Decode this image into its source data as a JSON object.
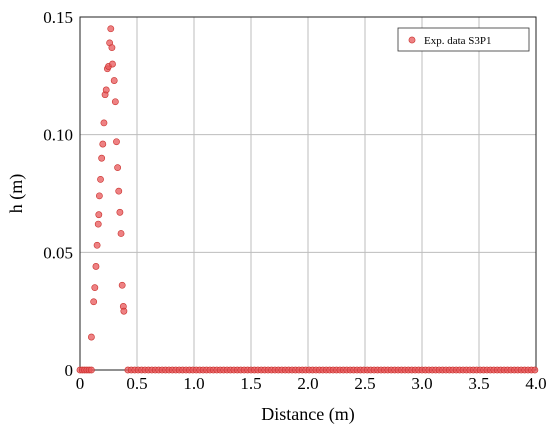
{
  "chart_data": {
    "type": "scatter",
    "title": "",
    "xlabel": "Distance (m)",
    "ylabel": "h (m)",
    "xlim": [
      0,
      4.0
    ],
    "ylim": [
      0,
      0.15
    ],
    "xticks": [
      "0",
      "0.5",
      "1.0",
      "1.5",
      "2.0",
      "2.5",
      "3.0",
      "3.5",
      "4.0"
    ],
    "yticks": [
      "0",
      "0.05",
      "0.10",
      "0.15"
    ],
    "grid": true,
    "legend_position": "top-right",
    "marker_color": "#e8575a",
    "series": [
      {
        "name": "Exp. data S3P1",
        "points": [
          [
            0.1,
            0.014
          ],
          [
            0.12,
            0.029
          ],
          [
            0.13,
            0.035
          ],
          [
            0.14,
            0.044
          ],
          [
            0.15,
            0.053
          ],
          [
            0.16,
            0.062
          ],
          [
            0.165,
            0.066
          ],
          [
            0.17,
            0.074
          ],
          [
            0.18,
            0.081
          ],
          [
            0.19,
            0.09
          ],
          [
            0.2,
            0.096
          ],
          [
            0.21,
            0.105
          ],
          [
            0.22,
            0.117
          ],
          [
            0.23,
            0.119
          ],
          [
            0.24,
            0.128
          ],
          [
            0.25,
            0.129
          ],
          [
            0.26,
            0.139
          ],
          [
            0.27,
            0.145
          ],
          [
            0.28,
            0.137
          ],
          [
            0.285,
            0.13
          ],
          [
            0.3,
            0.123
          ],
          [
            0.31,
            0.114
          ],
          [
            0.32,
            0.097
          ],
          [
            0.33,
            0.086
          ],
          [
            0.34,
            0.076
          ],
          [
            0.35,
            0.067
          ],
          [
            0.36,
            0.058
          ],
          [
            0.37,
            0.036
          ],
          [
            0.38,
            0.027
          ],
          [
            0.385,
            0.025
          ],
          [
            0.0,
            0.0
          ],
          [
            0.02,
            0.0
          ],
          [
            0.04,
            0.0
          ],
          [
            0.06,
            0.0
          ],
          [
            0.08,
            0.0
          ],
          [
            0.1,
            0.0
          ],
          [
            0.42,
            0.0
          ],
          [
            0.45,
            0.0
          ],
          [
            0.48,
            0.0
          ],
          [
            0.51,
            0.0
          ],
          [
            0.54,
            0.0
          ],
          [
            0.57,
            0.0
          ],
          [
            0.6,
            0.0
          ],
          [
            0.63,
            0.0
          ],
          [
            0.66,
            0.0
          ],
          [
            0.69,
            0.0
          ],
          [
            0.72,
            0.0
          ],
          [
            0.75,
            0.0
          ],
          [
            0.78,
            0.0
          ],
          [
            0.81,
            0.0
          ],
          [
            0.84,
            0.0
          ],
          [
            0.87,
            0.0
          ],
          [
            0.9,
            0.0
          ],
          [
            0.93,
            0.0
          ],
          [
            0.96,
            0.0
          ],
          [
            0.99,
            0.0
          ],
          [
            1.02,
            0.0
          ],
          [
            1.05,
            0.0
          ],
          [
            1.08,
            0.0
          ],
          [
            1.11,
            0.0
          ],
          [
            1.14,
            0.0
          ],
          [
            1.17,
            0.0
          ],
          [
            1.2,
            0.0
          ],
          [
            1.23,
            0.0
          ],
          [
            1.26,
            0.0
          ],
          [
            1.29,
            0.0
          ],
          [
            1.32,
            0.0
          ],
          [
            1.35,
            0.0
          ],
          [
            1.38,
            0.0
          ],
          [
            1.41,
            0.0
          ],
          [
            1.44,
            0.0
          ],
          [
            1.47,
            0.0
          ],
          [
            1.5,
            0.0
          ],
          [
            1.53,
            0.0
          ],
          [
            1.56,
            0.0
          ],
          [
            1.59,
            0.0
          ],
          [
            1.62,
            0.0
          ],
          [
            1.65,
            0.0
          ],
          [
            1.68,
            0.0
          ],
          [
            1.71,
            0.0
          ],
          [
            1.74,
            0.0
          ],
          [
            1.77,
            0.0
          ],
          [
            1.8,
            0.0
          ],
          [
            1.83,
            0.0
          ],
          [
            1.86,
            0.0
          ],
          [
            1.89,
            0.0
          ],
          [
            1.92,
            0.0
          ],
          [
            1.95,
            0.0
          ],
          [
            1.98,
            0.0
          ],
          [
            2.01,
            0.0
          ],
          [
            2.04,
            0.0
          ],
          [
            2.07,
            0.0
          ],
          [
            2.1,
            0.0
          ],
          [
            2.13,
            0.0
          ],
          [
            2.16,
            0.0
          ],
          [
            2.19,
            0.0
          ],
          [
            2.22,
            0.0
          ],
          [
            2.25,
            0.0
          ],
          [
            2.28,
            0.0
          ],
          [
            2.31,
            0.0
          ],
          [
            2.34,
            0.0
          ],
          [
            2.37,
            0.0
          ],
          [
            2.4,
            0.0
          ],
          [
            2.43,
            0.0
          ],
          [
            2.46,
            0.0
          ],
          [
            2.49,
            0.0
          ],
          [
            2.52,
            0.0
          ],
          [
            2.55,
            0.0
          ],
          [
            2.58,
            0.0
          ],
          [
            2.61,
            0.0
          ],
          [
            2.64,
            0.0
          ],
          [
            2.67,
            0.0
          ],
          [
            2.7,
            0.0
          ],
          [
            2.73,
            0.0
          ],
          [
            2.76,
            0.0
          ],
          [
            2.79,
            0.0
          ],
          [
            2.82,
            0.0
          ],
          [
            2.85,
            0.0
          ],
          [
            2.88,
            0.0
          ],
          [
            2.91,
            0.0
          ],
          [
            2.94,
            0.0
          ],
          [
            2.97,
            0.0
          ],
          [
            3.0,
            0.0
          ],
          [
            3.03,
            0.0
          ],
          [
            3.06,
            0.0
          ],
          [
            3.09,
            0.0
          ],
          [
            3.12,
            0.0
          ],
          [
            3.15,
            0.0
          ],
          [
            3.18,
            0.0
          ],
          [
            3.21,
            0.0
          ],
          [
            3.24,
            0.0
          ],
          [
            3.27,
            0.0
          ],
          [
            3.3,
            0.0
          ],
          [
            3.33,
            0.0
          ],
          [
            3.36,
            0.0
          ],
          [
            3.39,
            0.0
          ],
          [
            3.42,
            0.0
          ],
          [
            3.45,
            0.0
          ],
          [
            3.48,
            0.0
          ],
          [
            3.51,
            0.0
          ],
          [
            3.54,
            0.0
          ],
          [
            3.57,
            0.0
          ],
          [
            3.6,
            0.0
          ],
          [
            3.63,
            0.0
          ],
          [
            3.66,
            0.0
          ],
          [
            3.69,
            0.0
          ],
          [
            3.72,
            0.0
          ],
          [
            3.75,
            0.0
          ],
          [
            3.78,
            0.0
          ],
          [
            3.81,
            0.0
          ],
          [
            3.84,
            0.0
          ],
          [
            3.87,
            0.0
          ],
          [
            3.9,
            0.0
          ],
          [
            3.93,
            0.0
          ],
          [
            3.96,
            0.0
          ],
          [
            3.99,
            0.0
          ]
        ]
      }
    ]
  }
}
